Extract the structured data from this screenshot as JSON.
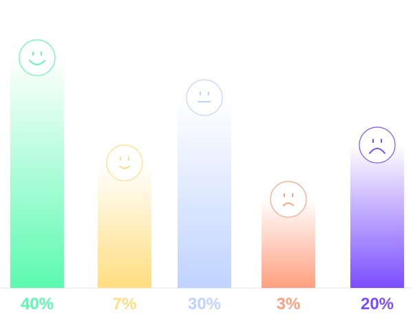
{
  "chart_data": {
    "type": "bar",
    "categories": [
      "very-satisfied",
      "satisfied",
      "neutral",
      "dissatisfied",
      "very-dissatisfied"
    ],
    "values": [
      40,
      7,
      30,
      3,
      20
    ],
    "value_labels": [
      "40%",
      "7%",
      "30%",
      "3%",
      "20%"
    ],
    "colors": [
      "#5bfab0",
      "#ffdd80",
      "#bfd3ff",
      "#ff9f7f",
      "#7b4dff"
    ],
    "icons": [
      "big-smile-face-icon",
      "smile-face-icon",
      "neutral-face-icon",
      "frown-face-icon",
      "sad-face-icon"
    ],
    "ylim": [
      0,
      40
    ],
    "grid": false,
    "legend": "none"
  }
}
